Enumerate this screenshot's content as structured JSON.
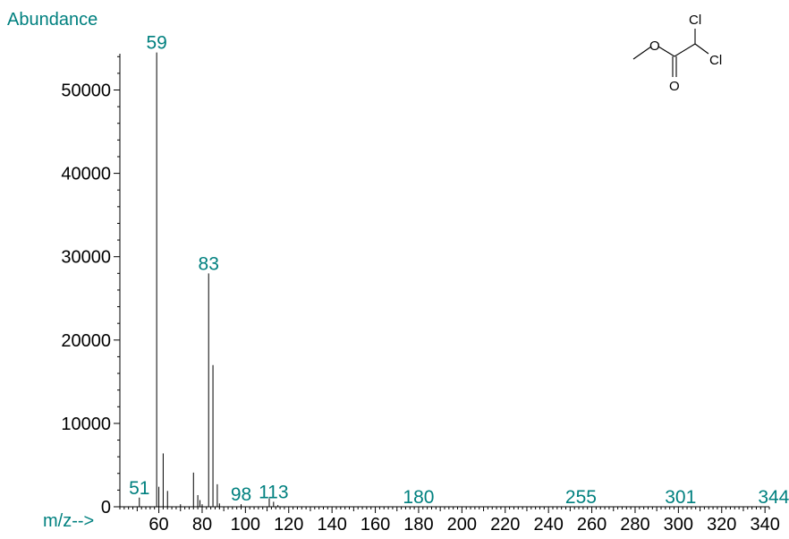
{
  "chart_data": {
    "type": "bar",
    "title": "",
    "ylabel": "Abundance",
    "xlabel": "m/z-->",
    "xlim": [
      42,
      342
    ],
    "ylim": [
      0,
      55000
    ],
    "x_ticks": [
      60,
      80,
      100,
      120,
      140,
      160,
      180,
      200,
      220,
      240,
      260,
      280,
      300,
      320,
      340
    ],
    "y_ticks": [
      0,
      10000,
      20000,
      30000,
      40000,
      50000
    ],
    "peaks": [
      {
        "mz": 51,
        "abundance": 1100
      },
      {
        "mz": 59,
        "abundance": 54500
      },
      {
        "mz": 60,
        "abundance": 2400
      },
      {
        "mz": 62,
        "abundance": 6400
      },
      {
        "mz": 64,
        "abundance": 1900
      },
      {
        "mz": 70,
        "abundance": 300
      },
      {
        "mz": 76,
        "abundance": 4100
      },
      {
        "mz": 78,
        "abundance": 1400
      },
      {
        "mz": 79,
        "abundance": 800
      },
      {
        "mz": 80,
        "abundance": 300
      },
      {
        "mz": 83,
        "abundance": 28000
      },
      {
        "mz": 85,
        "abundance": 17000
      },
      {
        "mz": 87,
        "abundance": 2700
      },
      {
        "mz": 88,
        "abundance": 400
      },
      {
        "mz": 98,
        "abundance": 300
      },
      {
        "mz": 111,
        "abundance": 1000
      },
      {
        "mz": 113,
        "abundance": 600
      },
      {
        "mz": 115,
        "abundance": 200
      }
    ],
    "peak_labels": [
      {
        "mz": 51,
        "abundance": 1100,
        "text": "51"
      },
      {
        "mz": 59,
        "abundance": 54500,
        "text": "59"
      },
      {
        "mz": 83,
        "abundance": 28000,
        "text": "83"
      },
      {
        "mz": 98,
        "abundance": 300,
        "text": "98"
      },
      {
        "mz": 113,
        "abundance": 600,
        "text": "113"
      },
      {
        "mz": 180,
        "abundance": 0,
        "text": "180"
      },
      {
        "mz": 255,
        "abundance": 0,
        "text": "255"
      },
      {
        "mz": 301,
        "abundance": 0,
        "text": "301"
      },
      {
        "mz": 344,
        "abundance": 0,
        "text": "344"
      }
    ],
    "structure_atoms": [
      "Cl",
      "Cl",
      "O",
      "O"
    ],
    "colors": {
      "axis": "#000000",
      "peak": "#000000",
      "label": "#00807f"
    }
  }
}
